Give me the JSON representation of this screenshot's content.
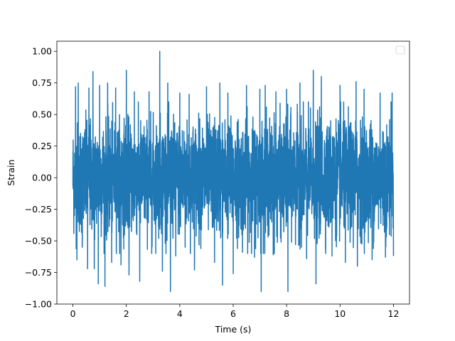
{
  "chart_data": {
    "type": "line",
    "title": "",
    "xlabel": "Time (s)",
    "ylabel": "Strain",
    "xlim": [
      -0.6,
      12.6
    ],
    "ylim": [
      -1.0,
      1.08
    ],
    "x_ticks": [
      0,
      2,
      4,
      6,
      8,
      10,
      12
    ],
    "x_tick_labels": [
      "0",
      "2",
      "4",
      "6",
      "8",
      "10",
      "12"
    ],
    "y_ticks": [
      -1.0,
      -0.75,
      -0.5,
      -0.25,
      0.0,
      0.25,
      0.5,
      0.75,
      1.0
    ],
    "y_tick_labels": [
      "−1.00",
      "−0.75",
      "−0.50",
      "−0.25",
      "0.00",
      "0.25",
      "0.50",
      "0.75",
      "1.00"
    ],
    "grid": false,
    "legend": {
      "location": "top-right",
      "entries": []
    },
    "series": [
      {
        "color": "#1f77b4",
        "x_range": [
          0,
          12
        ],
        "typical_range": [
          -0.45,
          0.45
        ],
        "min": -0.91,
        "max": 1.0,
        "peaks": [
          {
            "x": 0.1,
            "y": 0.72
          },
          {
            "x": 0.15,
            "y": -0.65
          },
          {
            "x": 0.2,
            "y": 0.75
          },
          {
            "x": 0.35,
            "y": -0.55
          },
          {
            "x": 0.55,
            "y": -0.72
          },
          {
            "x": 0.6,
            "y": 0.71
          },
          {
            "x": 0.75,
            "y": 0.84
          },
          {
            "x": 0.8,
            "y": -0.72
          },
          {
            "x": 0.95,
            "y": -0.84
          },
          {
            "x": 1.0,
            "y": 0.73
          },
          {
            "x": 1.2,
            "y": -0.86
          },
          {
            "x": 1.3,
            "y": 0.75
          },
          {
            "x": 1.45,
            "y": -0.67
          },
          {
            "x": 1.6,
            "y": 0.71
          },
          {
            "x": 1.8,
            "y": -0.69
          },
          {
            "x": 2.0,
            "y": 0.85
          },
          {
            "x": 2.1,
            "y": -0.77
          },
          {
            "x": 2.3,
            "y": 0.68
          },
          {
            "x": 2.5,
            "y": -0.82
          },
          {
            "x": 2.85,
            "y": 0.68
          },
          {
            "x": 2.95,
            "y": -0.6
          },
          {
            "x": 3.25,
            "y": 1.0
          },
          {
            "x": 3.35,
            "y": -0.74
          },
          {
            "x": 3.55,
            "y": 0.75
          },
          {
            "x": 3.65,
            "y": -0.9
          },
          {
            "x": 3.85,
            "y": -0.62
          },
          {
            "x": 4.0,
            "y": 0.67
          },
          {
            "x": 4.2,
            "y": -0.55
          },
          {
            "x": 4.35,
            "y": 0.66
          },
          {
            "x": 4.55,
            "y": -0.73
          },
          {
            "x": 5.0,
            "y": 0.72
          },
          {
            "x": 5.3,
            "y": -0.67
          },
          {
            "x": 5.5,
            "y": 0.75
          },
          {
            "x": 5.6,
            "y": -0.85
          },
          {
            "x": 5.8,
            "y": 0.67
          },
          {
            "x": 6.0,
            "y": -0.76
          },
          {
            "x": 6.35,
            "y": -0.59
          },
          {
            "x": 6.5,
            "y": 0.73
          },
          {
            "x": 6.8,
            "y": -0.63
          },
          {
            "x": 7.0,
            "y": 0.7
          },
          {
            "x": 7.05,
            "y": -0.9
          },
          {
            "x": 7.2,
            "y": 0.73
          },
          {
            "x": 7.5,
            "y": -0.61
          },
          {
            "x": 7.6,
            "y": 0.68
          },
          {
            "x": 8.0,
            "y": 0.7
          },
          {
            "x": 8.05,
            "y": -0.9
          },
          {
            "x": 8.5,
            "y": 0.75
          },
          {
            "x": 8.75,
            "y": -0.64
          },
          {
            "x": 9.0,
            "y": 0.85
          },
          {
            "x": 9.1,
            "y": -0.84
          },
          {
            "x": 9.3,
            "y": 0.8
          },
          {
            "x": 9.7,
            "y": -0.62
          },
          {
            "x": 10.0,
            "y": 0.73
          },
          {
            "x": 10.2,
            "y": -0.67
          },
          {
            "x": 10.6,
            "y": 0.76
          },
          {
            "x": 10.65,
            "y": -0.7
          },
          {
            "x": 10.9,
            "y": 0.7
          },
          {
            "x": 11.2,
            "y": -0.65
          },
          {
            "x": 11.5,
            "y": 0.67
          },
          {
            "x": 11.7,
            "y": -0.63
          },
          {
            "x": 11.95,
            "y": 0.67
          },
          {
            "x": 12.0,
            "y": -0.62
          }
        ]
      }
    ]
  }
}
